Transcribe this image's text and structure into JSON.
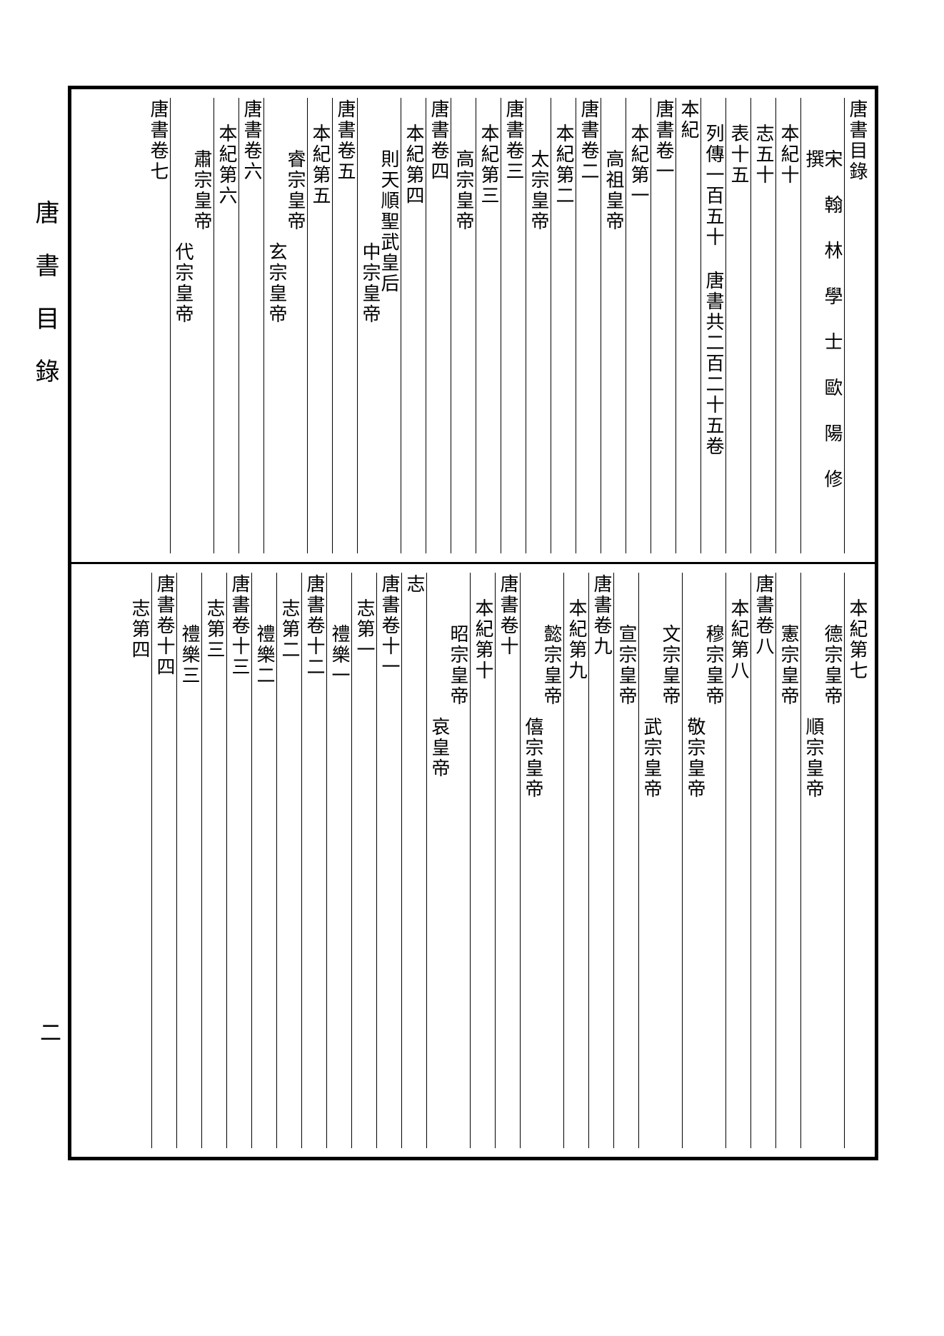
{
  "margin_title": "唐書目錄",
  "page_number": "二",
  "font_sizes": {
    "column": 26,
    "margin": 34,
    "pagenum": 30
  },
  "colors": {
    "background": "#ffffff",
    "text": "#000000",
    "border": "#000000"
  },
  "top_columns": [
    {
      "text": "唐書目錄",
      "indent": 0,
      "spaced": false
    },
    {
      "text": "宋翰林學士歐陽修撰",
      "indent": 2,
      "spaced": true
    },
    {
      "text": "本紀十",
      "indent": 1,
      "spaced": false
    },
    {
      "text": "志五十",
      "indent": 1,
      "spaced": false
    },
    {
      "text": "表十五",
      "indent": 1,
      "spaced": false
    },
    {
      "text": "列傳一百五十 唐書共二百二十五卷",
      "indent": 1,
      "spaced": false
    },
    {
      "text": "本紀",
      "indent": 0,
      "spaced": false
    },
    {
      "text": "唐書卷一",
      "indent": 0,
      "spaced": false
    },
    {
      "text": "本紀第一",
      "indent": 1,
      "spaced": false
    },
    {
      "text": "高祖皇帝",
      "indent": 2,
      "spaced": false
    },
    {
      "text": "唐書卷二",
      "indent": 0,
      "spaced": false
    },
    {
      "text": "本紀第二",
      "indent": 1,
      "spaced": false
    },
    {
      "text": "太宗皇帝",
      "indent": 2,
      "spaced": false
    },
    {
      "text": "唐書卷三",
      "indent": 0,
      "spaced": false
    },
    {
      "text": "本紀第三",
      "indent": 1,
      "spaced": false
    },
    {
      "text": "高宗皇帝",
      "indent": 2,
      "spaced": false
    },
    {
      "text": "唐書卷四",
      "indent": 0,
      "spaced": false
    },
    {
      "text": "本紀第四",
      "indent": 1,
      "spaced": false
    },
    {
      "text": "則天順聖武皇后",
      "second": "中宗皇帝",
      "indent": 2,
      "spaced": false
    },
    {
      "text": "唐書卷五",
      "indent": 0,
      "spaced": false
    },
    {
      "text": "本紀第五",
      "indent": 1,
      "spaced": false
    },
    {
      "text": "睿宗皇帝",
      "second": "玄宗皇帝",
      "indent": 2,
      "spaced": false
    },
    {
      "text": "唐書卷六",
      "indent": 0,
      "spaced": false
    },
    {
      "text": "本紀第六",
      "indent": 1,
      "spaced": false
    },
    {
      "text": "肅宗皇帝",
      "second": "代宗皇帝",
      "indent": 2,
      "spaced": false
    },
    {
      "text": "唐書卷七",
      "indent": 0,
      "spaced": false
    }
  ],
  "bottom_columns": [
    {
      "text": "本紀第七",
      "indent": 1,
      "spaced": false
    },
    {
      "text": "德宗皇帝",
      "second": "順宗皇帝",
      "indent": 2,
      "spaced": false
    },
    {
      "text": "憲宗皇帝",
      "indent": 2,
      "spaced": false
    },
    {
      "text": "唐書卷八",
      "indent": 0,
      "spaced": false
    },
    {
      "text": "本紀第八",
      "indent": 1,
      "spaced": false
    },
    {
      "text": "穆宗皇帝",
      "second": "敬宗皇帝",
      "indent": 2,
      "spaced": false
    },
    {
      "text": "文宗皇帝",
      "second": "武宗皇帝",
      "indent": 2,
      "spaced": false
    },
    {
      "text": "宣宗皇帝",
      "indent": 2,
      "spaced": false
    },
    {
      "text": "唐書卷九",
      "indent": 0,
      "spaced": false
    },
    {
      "text": "本紀第九",
      "indent": 1,
      "spaced": false
    },
    {
      "text": "懿宗皇帝",
      "second": "僖宗皇帝",
      "indent": 2,
      "spaced": false
    },
    {
      "text": "唐書卷十",
      "indent": 0,
      "spaced": false
    },
    {
      "text": "本紀第十",
      "indent": 1,
      "spaced": false
    },
    {
      "text": "昭宗皇帝",
      "second": "哀皇帝",
      "indent": 2,
      "spaced": false
    },
    {
      "text": "志",
      "indent": 0,
      "spaced": false
    },
    {
      "text": "唐書卷十一",
      "indent": 0,
      "spaced": false
    },
    {
      "text": "志第一",
      "indent": 1,
      "spaced": false
    },
    {
      "text": "禮樂一",
      "indent": 2,
      "spaced": false
    },
    {
      "text": "唐書卷十二",
      "indent": 0,
      "spaced": false
    },
    {
      "text": "志第二",
      "indent": 1,
      "spaced": false
    },
    {
      "text": "禮樂二",
      "indent": 2,
      "spaced": false
    },
    {
      "text": "唐書卷十三",
      "indent": 0,
      "spaced": false
    },
    {
      "text": "志第三",
      "indent": 1,
      "spaced": false
    },
    {
      "text": "禮樂三",
      "indent": 2,
      "spaced": false
    },
    {
      "text": "唐書卷十四",
      "indent": 0,
      "spaced": false
    },
    {
      "text": "志第四",
      "indent": 1,
      "spaced": false
    }
  ]
}
